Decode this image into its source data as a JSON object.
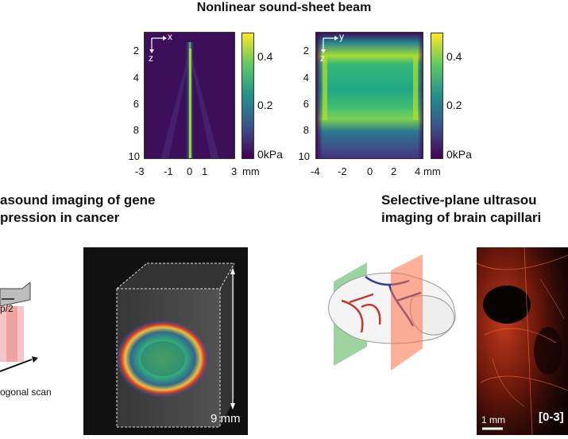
{
  "title": "Nonlinear sound-sheet beam",
  "left_map": {
    "axis_h_label": "x",
    "axis_v_label": "z",
    "y_ticks": [
      "2",
      "4",
      "6",
      "8",
      "10"
    ],
    "x_ticks": [
      "-3",
      "-1",
      "0",
      "1",
      "3"
    ],
    "x_unit": "mm",
    "colorbar_ticks": [
      "0.4",
      "0.2",
      "0kPa"
    ]
  },
  "right_map": {
    "axis_h_label": "y",
    "axis_v_label": "z",
    "y_ticks": [
      "2",
      "4",
      "6",
      "8",
      "10"
    ],
    "x_ticks": [
      "-4",
      "-2",
      "0",
      "2",
      "4"
    ],
    "x_unit": "mm",
    "colorbar_ticks": [
      "0.4",
      "0.2",
      "0kPa"
    ]
  },
  "left_panel": {
    "title_line1": "asound imaging of gene",
    "title_line2": "pression in cancer",
    "probe_label": "p/2",
    "scan_label": "ogonal scan",
    "scale_label": "9 mm"
  },
  "right_panel": {
    "title_line1": "Selective-plane ultrasou",
    "title_line2": "imaging of brain capillari",
    "scale_label": "1 mm",
    "range_label": "[0-3]"
  },
  "colors": {
    "viridis_low": "#440154",
    "viridis_high": "#fde725",
    "vessel_red": "#c0392b",
    "vessel_blue": "#2c3e9e"
  }
}
